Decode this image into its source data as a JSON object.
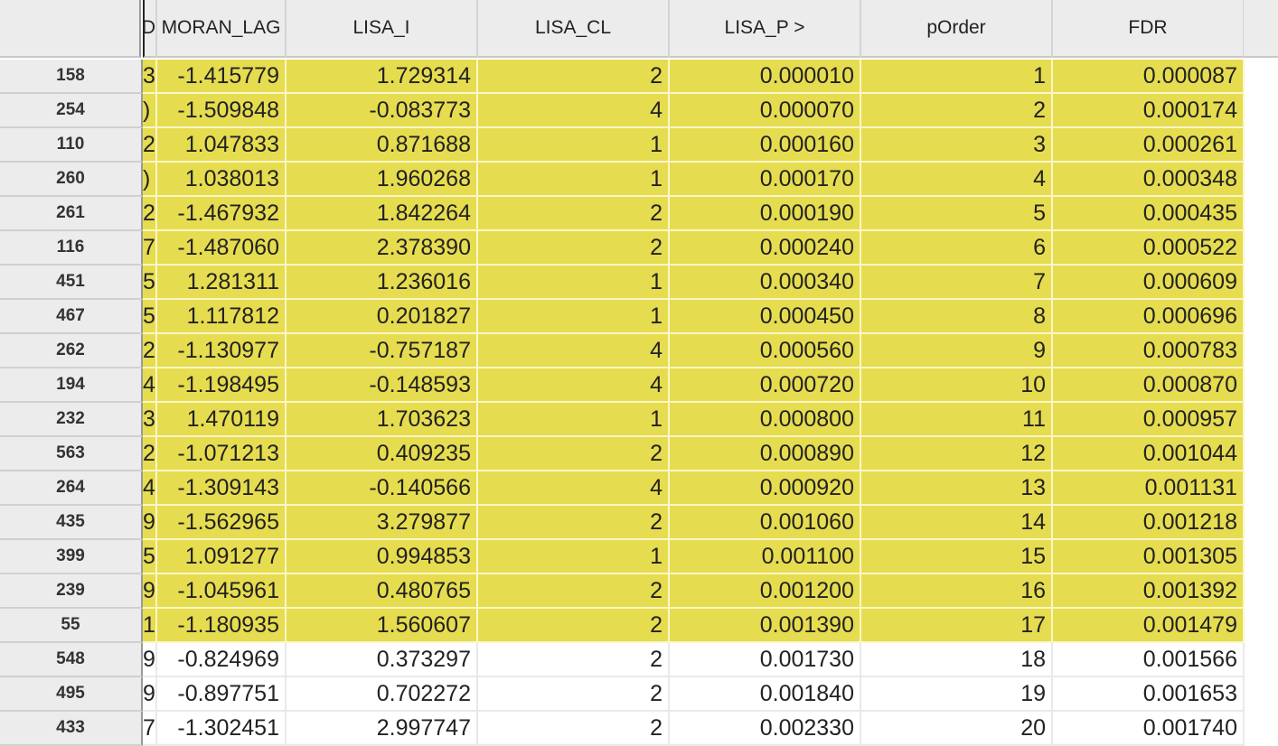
{
  "table": {
    "columns": [
      {
        "label": "D",
        "clipped": true
      },
      {
        "label": "MORAN_LAG"
      },
      {
        "label": "LISA_I"
      },
      {
        "label": "LISA_CL"
      },
      {
        "label": "LISA_P >"
      },
      {
        "label": "pOrder"
      },
      {
        "label": "FDR"
      }
    ],
    "highlight_color": "#e6dc4f",
    "rows": [
      {
        "id": "158",
        "selected": true,
        "cells": [
          "3",
          "-1.415779",
          "1.729314",
          "2",
          "0.000010",
          "1",
          "0.000087"
        ]
      },
      {
        "id": "254",
        "selected": true,
        "cells": [
          ")",
          "-1.509848",
          "-0.083773",
          "4",
          "0.000070",
          "2",
          "0.000174"
        ]
      },
      {
        "id": "110",
        "selected": true,
        "cells": [
          "2",
          "1.047833",
          "0.871688",
          "1",
          "0.000160",
          "3",
          "0.000261"
        ]
      },
      {
        "id": "260",
        "selected": true,
        "cells": [
          ")",
          "1.038013",
          "1.960268",
          "1",
          "0.000170",
          "4",
          "0.000348"
        ]
      },
      {
        "id": "261",
        "selected": true,
        "cells": [
          "2",
          "-1.467932",
          "1.842264",
          "2",
          "0.000190",
          "5",
          "0.000435"
        ]
      },
      {
        "id": "116",
        "selected": true,
        "cells": [
          "7",
          "-1.487060",
          "2.378390",
          "2",
          "0.000240",
          "6",
          "0.000522"
        ]
      },
      {
        "id": "451",
        "selected": true,
        "cells": [
          "5",
          "1.281311",
          "1.236016",
          "1",
          "0.000340",
          "7",
          "0.000609"
        ]
      },
      {
        "id": "467",
        "selected": true,
        "cells": [
          "5",
          "1.117812",
          "0.201827",
          "1",
          "0.000450",
          "8",
          "0.000696"
        ]
      },
      {
        "id": "262",
        "selected": true,
        "cells": [
          "2",
          "-1.130977",
          "-0.757187",
          "4",
          "0.000560",
          "9",
          "0.000783"
        ]
      },
      {
        "id": "194",
        "selected": true,
        "cells": [
          "4",
          "-1.198495",
          "-0.148593",
          "4",
          "0.000720",
          "10",
          "0.000870"
        ]
      },
      {
        "id": "232",
        "selected": true,
        "cells": [
          "3",
          "1.470119",
          "1.703623",
          "1",
          "0.000800",
          "11",
          "0.000957"
        ]
      },
      {
        "id": "563",
        "selected": true,
        "cells": [
          "2",
          "-1.071213",
          "0.409235",
          "2",
          "0.000890",
          "12",
          "0.001044"
        ]
      },
      {
        "id": "264",
        "selected": true,
        "cells": [
          "4",
          "-1.309143",
          "-0.140566",
          "4",
          "0.000920",
          "13",
          "0.001131"
        ]
      },
      {
        "id": "435",
        "selected": true,
        "cells": [
          "9",
          "-1.562965",
          "3.279877",
          "2",
          "0.001060",
          "14",
          "0.001218"
        ]
      },
      {
        "id": "399",
        "selected": true,
        "cells": [
          "5",
          "1.091277",
          "0.994853",
          "1",
          "0.001100",
          "15",
          "0.001305"
        ]
      },
      {
        "id": "239",
        "selected": true,
        "cells": [
          "9",
          "-1.045961",
          "0.480765",
          "2",
          "0.001200",
          "16",
          "0.001392"
        ]
      },
      {
        "id": "55",
        "selected": true,
        "cells": [
          "1",
          "-1.180935",
          "1.560607",
          "2",
          "0.001390",
          "17",
          "0.001479"
        ]
      },
      {
        "id": "548",
        "selected": false,
        "cells": [
          "9",
          "-0.824969",
          "0.373297",
          "2",
          "0.001730",
          "18",
          "0.001566"
        ]
      },
      {
        "id": "495",
        "selected": false,
        "cells": [
          "9",
          "-0.897751",
          "0.702272",
          "2",
          "0.001840",
          "19",
          "0.001653"
        ]
      },
      {
        "id": "433",
        "selected": false,
        "cells": [
          "7",
          "-1.302451",
          "2.997747",
          "2",
          "0.002330",
          "20",
          "0.001740"
        ]
      }
    ]
  }
}
